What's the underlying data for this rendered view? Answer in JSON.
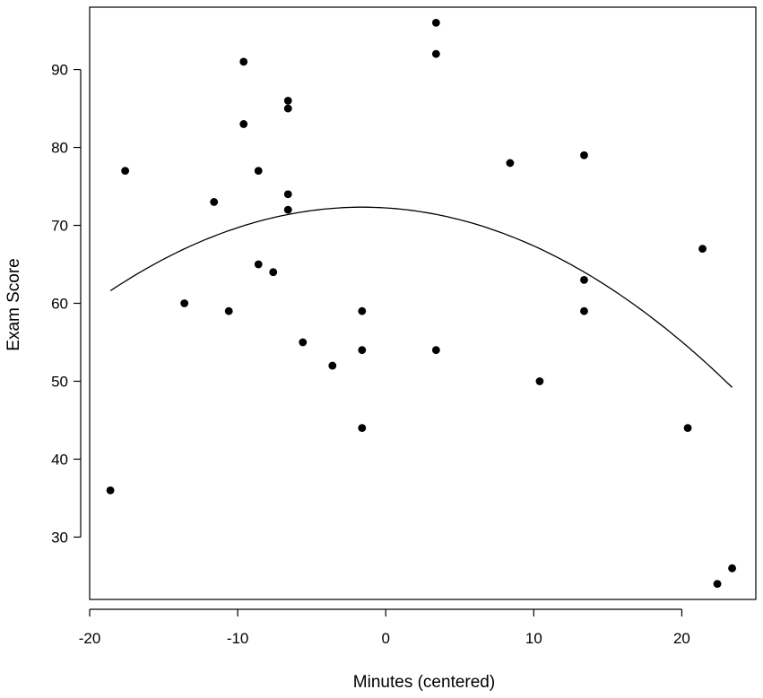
{
  "chart_data": {
    "type": "scatter",
    "title": "",
    "xlabel": "Minutes (centered)",
    "ylabel": "Exam Score",
    "xlim": [
      -20,
      25
    ],
    "ylim": [
      22,
      98
    ],
    "xticks": [
      -20,
      -10,
      0,
      10,
      20
    ],
    "yticks": [
      30,
      40,
      50,
      60,
      70,
      80,
      90
    ],
    "grid": false,
    "legend": "none",
    "point_color": "#000000",
    "line_color": "#000000",
    "points": [
      {
        "x": -18.6,
        "y": 36
      },
      {
        "x": -17.6,
        "y": 77
      },
      {
        "x": -13.6,
        "y": 60
      },
      {
        "x": -11.6,
        "y": 73
      },
      {
        "x": -10.6,
        "y": 59
      },
      {
        "x": -9.6,
        "y": 91
      },
      {
        "x": -9.6,
        "y": 83
      },
      {
        "x": -8.6,
        "y": 77
      },
      {
        "x": -8.6,
        "y": 65
      },
      {
        "x": -7.6,
        "y": 64
      },
      {
        "x": -6.6,
        "y": 86
      },
      {
        "x": -6.6,
        "y": 85
      },
      {
        "x": -6.6,
        "y": 74
      },
      {
        "x": -6.6,
        "y": 72
      },
      {
        "x": -5.6,
        "y": 55
      },
      {
        "x": -3.6,
        "y": 52
      },
      {
        "x": -1.6,
        "y": 59
      },
      {
        "x": -1.6,
        "y": 54
      },
      {
        "x": -1.6,
        "y": 44
      },
      {
        "x": 3.4,
        "y": 96
      },
      {
        "x": 3.4,
        "y": 92
      },
      {
        "x": 3.4,
        "y": 54
      },
      {
        "x": 8.4,
        "y": 78
      },
      {
        "x": 10.4,
        "y": 50
      },
      {
        "x": 13.4,
        "y": 79
      },
      {
        "x": 13.4,
        "y": 63
      },
      {
        "x": 13.4,
        "y": 59
      },
      {
        "x": 20.4,
        "y": 44
      },
      {
        "x": 21.4,
        "y": 67
      },
      {
        "x": 22.4,
        "y": 24
      },
      {
        "x": 23.4,
        "y": 26
      }
    ],
    "fit_line": {
      "type": "quadratic",
      "x_range": [
        -18.6,
        23.4
      ],
      "coefficients": {
        "a": -0.03706,
        "b": -0.1175,
        "c": 72.24
      }
    }
  }
}
